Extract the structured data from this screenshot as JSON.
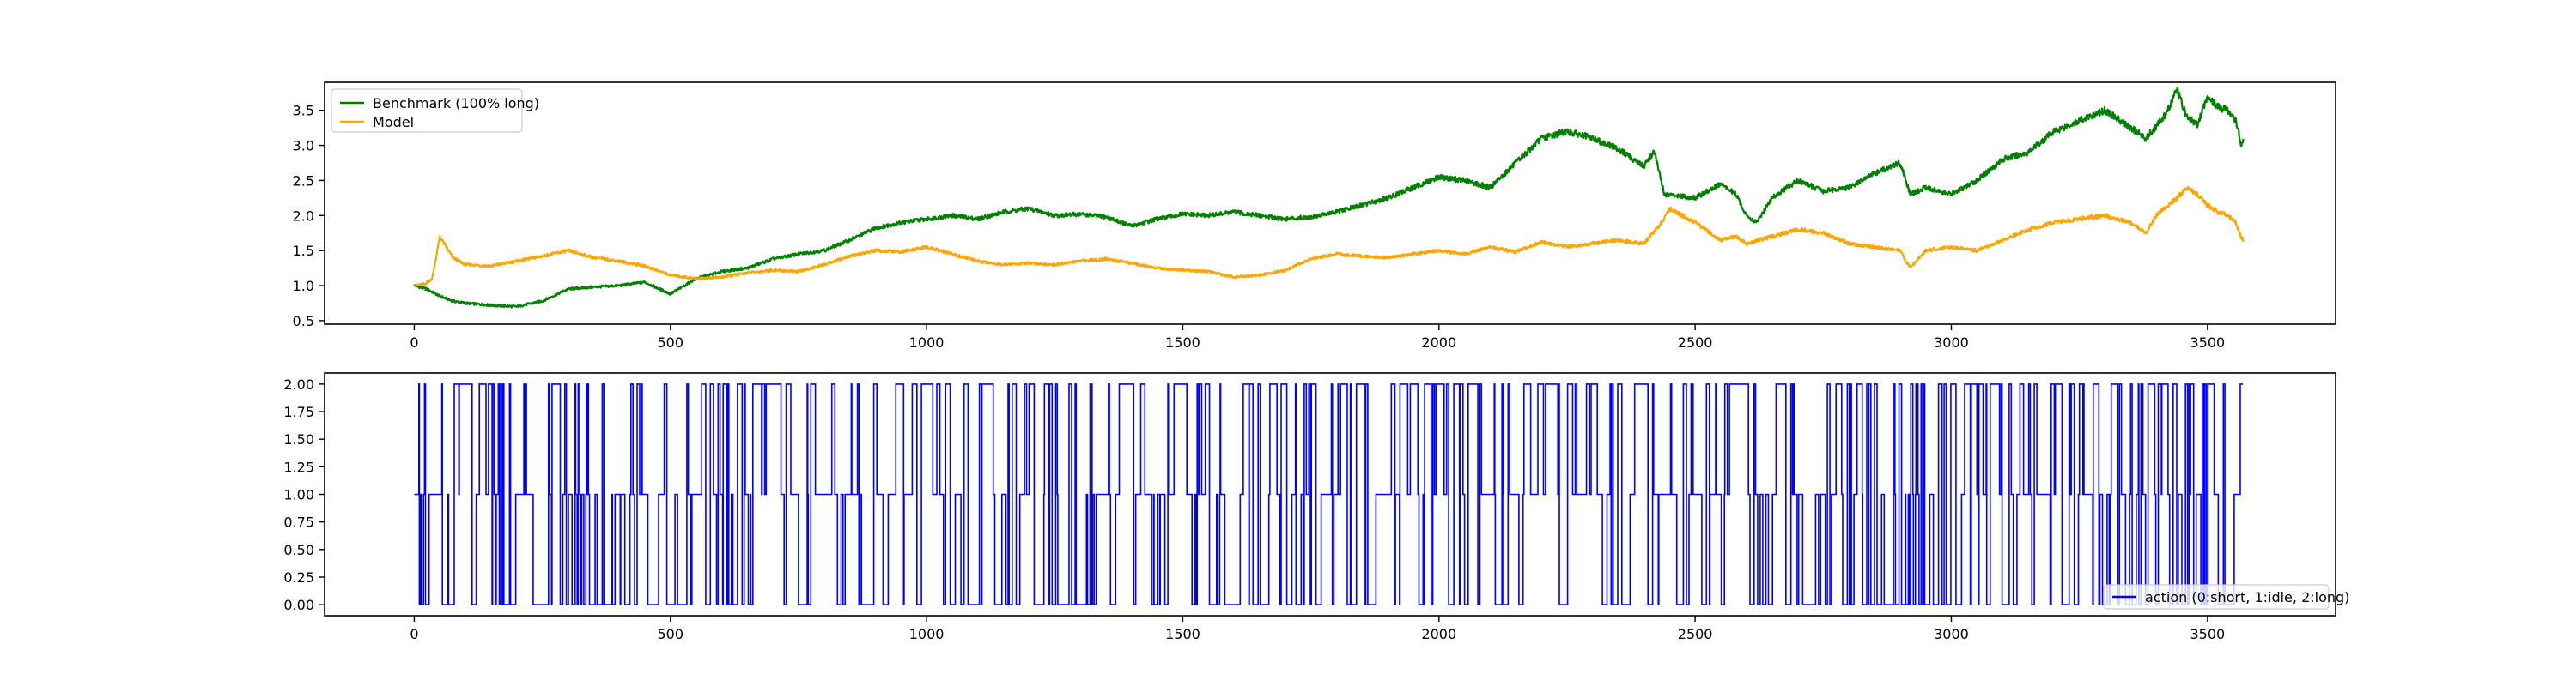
{
  "chart_data": [
    {
      "type": "line",
      "xlim": [
        -175,
        3750
      ],
      "ylim": [
        0.45,
        3.9
      ],
      "xticks": [
        0,
        500,
        1000,
        1500,
        2000,
        2500,
        3000,
        3500
      ],
      "yticks": [
        0.5,
        1.0,
        1.5,
        2.0,
        2.5,
        3.0,
        3.5
      ],
      "legend": "top-left",
      "grid": false,
      "series": [
        {
          "name": "Benchmark (100% long)",
          "color": "#008000",
          "x": [
            0,
            25,
            50,
            75,
            100,
            150,
            200,
            250,
            300,
            350,
            400,
            450,
            500,
            550,
            600,
            650,
            700,
            750,
            800,
            850,
            900,
            950,
            1000,
            1050,
            1100,
            1150,
            1200,
            1250,
            1300,
            1350,
            1400,
            1450,
            1500,
            1550,
            1600,
            1650,
            1700,
            1750,
            1800,
            1850,
            1900,
            1950,
            2000,
            2050,
            2100,
            2150,
            2200,
            2250,
            2300,
            2350,
            2400,
            2420,
            2440,
            2500,
            2550,
            2580,
            2600,
            2620,
            2650,
            2700,
            2750,
            2800,
            2850,
            2900,
            2920,
            2950,
            3000,
            3050,
            3100,
            3150,
            3200,
            3250,
            3300,
            3350,
            3380,
            3420,
            3440,
            3460,
            3480,
            3500,
            3520,
            3540,
            3555,
            3560,
            3565,
            3570
          ],
          "y": [
            1.0,
            0.95,
            0.85,
            0.78,
            0.75,
            0.72,
            0.7,
            0.78,
            0.95,
            0.98,
            1.0,
            1.05,
            0.88,
            1.1,
            1.2,
            1.25,
            1.38,
            1.45,
            1.5,
            1.65,
            1.82,
            1.9,
            1.95,
            2.0,
            1.95,
            2.05,
            2.1,
            2.0,
            2.02,
            1.98,
            1.85,
            1.95,
            2.02,
            2.0,
            2.05,
            2.0,
            1.95,
            1.98,
            2.05,
            2.15,
            2.25,
            2.4,
            2.55,
            2.5,
            2.4,
            2.75,
            3.1,
            3.2,
            3.1,
            2.95,
            2.7,
            2.92,
            2.3,
            2.25,
            2.45,
            2.3,
            2.0,
            1.9,
            2.25,
            2.5,
            2.35,
            2.4,
            2.6,
            2.75,
            2.3,
            2.4,
            2.3,
            2.5,
            2.8,
            2.9,
            3.2,
            3.35,
            3.5,
            3.25,
            3.1,
            3.45,
            3.8,
            3.4,
            3.3,
            3.7,
            3.55,
            3.5,
            3.35,
            3.25,
            3.0,
            3.05
          ]
        },
        {
          "name": "Model",
          "color": "#FFA500",
          "x": [
            0,
            20,
            35,
            50,
            75,
            100,
            150,
            200,
            250,
            300,
            350,
            400,
            450,
            500,
            550,
            600,
            650,
            700,
            750,
            800,
            850,
            900,
            950,
            1000,
            1050,
            1100,
            1150,
            1200,
            1250,
            1300,
            1350,
            1400,
            1450,
            1500,
            1550,
            1600,
            1650,
            1700,
            1750,
            1800,
            1850,
            1900,
            1950,
            2000,
            2050,
            2100,
            2150,
            2200,
            2250,
            2300,
            2350,
            2400,
            2430,
            2450,
            2500,
            2550,
            2580,
            2600,
            2650,
            2700,
            2750,
            2800,
            2850,
            2900,
            2920,
            2950,
            3000,
            3050,
            3100,
            3150,
            3200,
            3250,
            3300,
            3350,
            3380,
            3400,
            3440,
            3460,
            3480,
            3500,
            3520,
            3540,
            3555,
            3565,
            3570
          ],
          "y": [
            1.0,
            1.02,
            1.1,
            1.7,
            1.4,
            1.3,
            1.28,
            1.35,
            1.42,
            1.5,
            1.4,
            1.35,
            1.28,
            1.15,
            1.1,
            1.12,
            1.18,
            1.22,
            1.2,
            1.3,
            1.42,
            1.5,
            1.48,
            1.55,
            1.45,
            1.35,
            1.3,
            1.32,
            1.3,
            1.35,
            1.38,
            1.32,
            1.25,
            1.22,
            1.2,
            1.12,
            1.15,
            1.22,
            1.38,
            1.45,
            1.42,
            1.4,
            1.45,
            1.5,
            1.45,
            1.55,
            1.48,
            1.62,
            1.55,
            1.6,
            1.65,
            1.6,
            1.85,
            2.1,
            1.9,
            1.65,
            1.7,
            1.6,
            1.7,
            1.8,
            1.75,
            1.6,
            1.55,
            1.5,
            1.25,
            1.5,
            1.55,
            1.5,
            1.65,
            1.8,
            1.9,
            1.95,
            2.0,
            1.9,
            1.75,
            2.0,
            2.25,
            2.4,
            2.3,
            2.15,
            2.05,
            2.0,
            1.9,
            1.7,
            1.65
          ]
        }
      ]
    },
    {
      "type": "line",
      "drawstyle": "steps",
      "xlim": [
        -175,
        3750
      ],
      "ylim": [
        -0.1,
        2.1
      ],
      "xticks": [
        0,
        500,
        1000,
        1500,
        2000,
        2500,
        3000,
        3500
      ],
      "yticks": [
        0.0,
        0.25,
        0.5,
        0.75,
        1.0,
        1.25,
        1.5,
        1.75,
        2.0
      ],
      "ytick_labels": [
        "0.00",
        "0.25",
        "0.50",
        "0.75",
        "1.00",
        "1.25",
        "1.50",
        "1.75",
        "2.00"
      ],
      "legend": "bottom-right",
      "grid": false,
      "n_points": 3570,
      "seed": 7,
      "series": [
        {
          "name": "action (0:short, 1:idle, 2:long)",
          "color": "#0000FF",
          "values": [
            0,
            1,
            2
          ]
        }
      ]
    }
  ]
}
